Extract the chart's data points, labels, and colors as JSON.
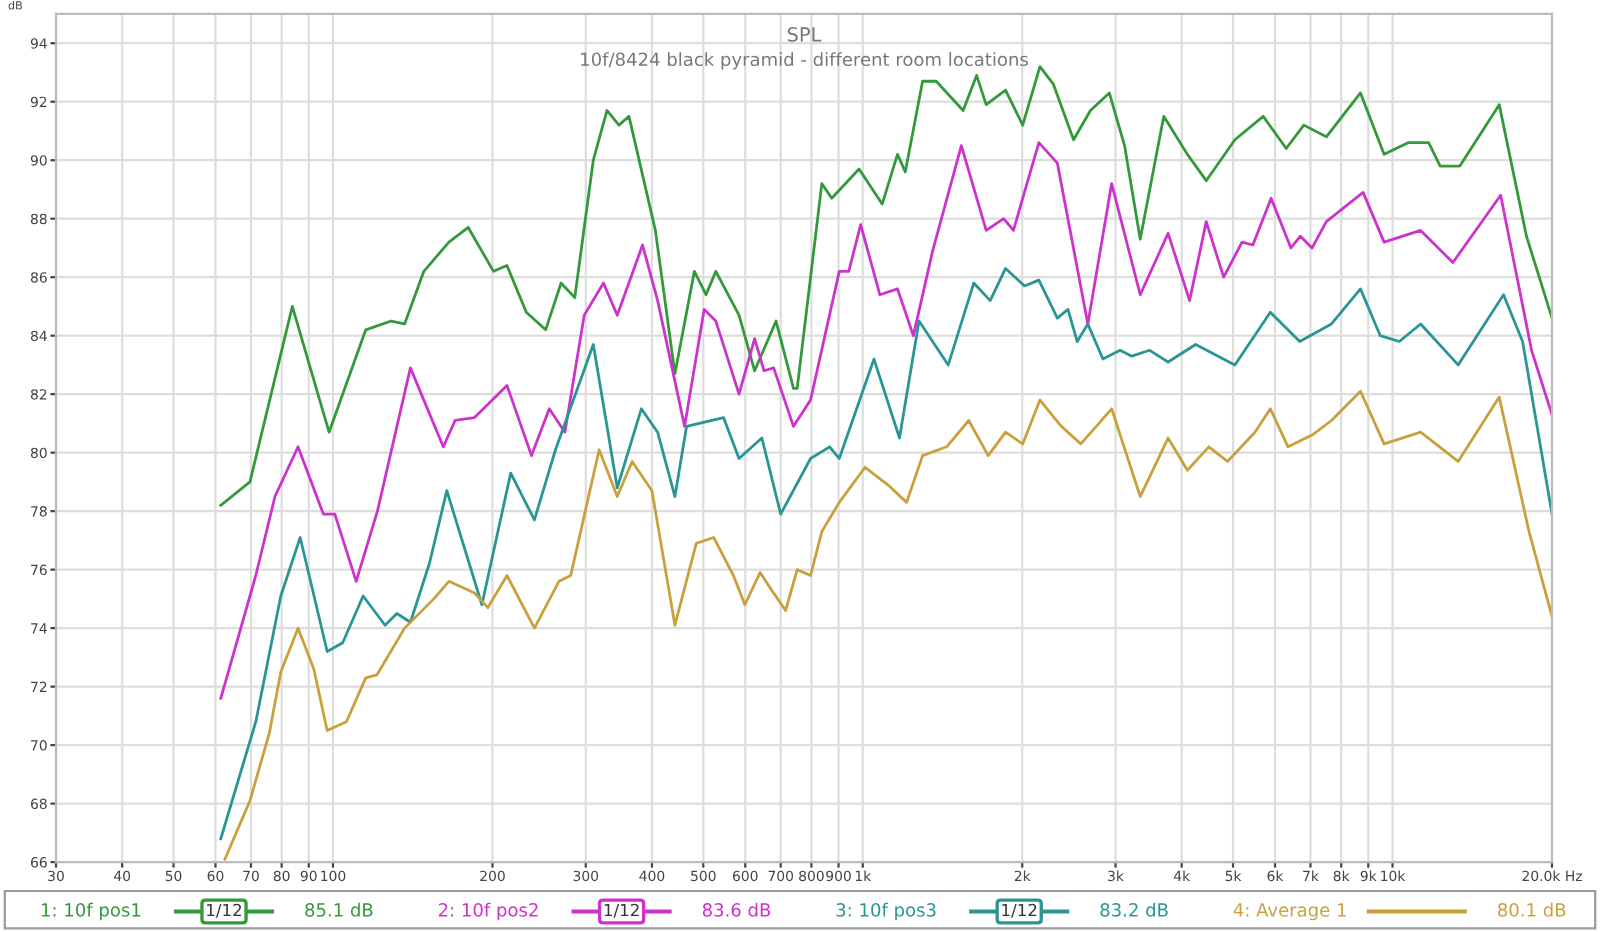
{
  "chart_data": {
    "type": "line",
    "title": "SPL",
    "subtitle": "10f/8424 black pyramid - different room locations",
    "ylabel": "dB",
    "xlim": [
      30,
      20000
    ],
    "ylim": [
      66,
      95
    ],
    "xticks": [
      30,
      40,
      50,
      60,
      70,
      80,
      90,
      100,
      200,
      300,
      400,
      500,
      600,
      700,
      800,
      900,
      {
        "value": 1000,
        "label": "1k"
      },
      {
        "value": 2000,
        "label": "2k"
      },
      {
        "value": 3000,
        "label": "3k"
      },
      {
        "value": 4000,
        "label": "4k"
      },
      {
        "value": 5000,
        "label": "5k"
      },
      {
        "value": 6000,
        "label": "6k"
      },
      {
        "value": 7000,
        "label": "7k"
      },
      {
        "value": 8000,
        "label": "8k"
      },
      {
        "value": 9000,
        "label": "9k"
      },
      {
        "value": 10000,
        "label": "10k"
      },
      {
        "value": 20000,
        "label": "20.0k Hz"
      }
    ],
    "yticks": [
      66,
      68,
      70,
      72,
      74,
      76,
      78,
      80,
      82,
      84,
      86,
      88,
      90,
      92,
      94
    ],
    "log": "x",
    "grid": true,
    "legend": "bottom",
    "marker": "none",
    "line_style": "solid",
    "annotations": [
      "1/12",
      "85.1 dB",
      "1/12",
      "83.6 dB",
      "1/12",
      "83.2 dB",
      "80.1 dB"
    ],
    "series": [
      {
        "name": "1: 10f pos1",
        "color": "#33993a",
        "x": [
          61.4,
          69.7,
          83.8,
          98.3,
          115.3,
          128.7,
          136.5,
          148.4,
          165.5,
          180,
          200.9,
          213,
          231.7,
          252,
          269.5,
          286,
          310,
          329,
          346.5,
          362,
          406,
          442,
          481,
          506,
          528,
          584,
          625,
          686,
          740,
          752,
          837,
          874,
          984,
          1088,
          1163,
          1203,
          1297,
          1376,
          1547,
          1640,
          1710,
          1860,
          2004,
          2160,
          2290,
          2500,
          2690,
          2920,
          3120,
          3340,
          3700,
          4100,
          4450,
          5040,
          5700,
          6300,
          6800,
          7500,
          8700,
          9640,
          10700,
          11700,
          12300,
          13400,
          15900,
          17900,
          20000
        ],
        "values": [
          78.2,
          79.0,
          85.0,
          80.7,
          84.2,
          84.5,
          84.4,
          86.2,
          87.2,
          87.7,
          86.2,
          86.4,
          84.8,
          84.2,
          85.8,
          85.3,
          90.0,
          91.7,
          91.2,
          91.5,
          87.6,
          82.7,
          86.2,
          85.4,
          86.2,
          84.7,
          82.8,
          84.5,
          82.2,
          82.2,
          89.2,
          88.7,
          89.7,
          88.5,
          90.2,
          89.6,
          92.7,
          92.7,
          91.7,
          92.9,
          91.9,
          92.4,
          91.2,
          93.2,
          92.6,
          90.7,
          91.7,
          92.3,
          90.5,
          87.3,
          91.5,
          90.2,
          89.3,
          90.7,
          91.5,
          90.4,
          91.2,
          90.8,
          92.3,
          90.2,
          90.6,
          90.6,
          89.8,
          89.8,
          91.9,
          87.4,
          84.6
        ]
      },
      {
        "name": "2: 10f pos2",
        "color": "#cc33cc",
        "x": [
          61.4,
          71.5,
          77.7,
          85.9,
          95.9,
          100.8,
          110.6,
          121.3,
          140,
          161.5,
          170,
          185,
          213,
          237,
          256,
          274,
          298,
          324,
          344,
          384,
          410,
          461,
          502,
          528,
          584,
          625,
          651,
          679,
          740,
          797,
          903,
          941,
          991,
          1077,
          1163,
          1246,
          1355,
          1535,
          1710,
          1845,
          1925,
          2150,
          2330,
          2660,
          2950,
          3340,
          3770,
          4140,
          4450,
          4800,
          5200,
          5450,
          5900,
          6430,
          6700,
          7050,
          7500,
          8800,
          9640,
          11300,
          13000,
          16000,
          18300,
          20000
        ],
        "values": [
          71.6,
          75.8,
          78.5,
          80.2,
          77.9,
          77.9,
          75.6,
          78.0,
          82.9,
          80.2,
          81.1,
          81.2,
          82.3,
          79.9,
          81.5,
          80.7,
          84.7,
          85.8,
          84.7,
          87.1,
          85.2,
          80.9,
          84.9,
          84.5,
          82.0,
          83.9,
          82.8,
          82.9,
          80.9,
          81.8,
          86.2,
          86.2,
          87.8,
          85.4,
          85.6,
          84.0,
          86.9,
          90.5,
          87.6,
          88.0,
          87.6,
          90.6,
          89.9,
          84.4,
          89.2,
          85.4,
          87.5,
          85.2,
          87.9,
          86.0,
          87.2,
          87.1,
          88.7,
          87.0,
          87.4,
          87.0,
          87.9,
          88.9,
          87.2,
          87.6,
          86.5,
          88.8,
          83.5,
          81.3
        ]
      },
      {
        "name": "3: 10f pos3",
        "color": "#2a9595",
        "x": [
          61.4,
          71.5,
          79.7,
          86.7,
          97.5,
          104.3,
          114,
          125.4,
          132,
          140,
          152,
          164,
          191,
          216.5,
          240,
          263,
          310,
          344,
          382,
          410,
          442,
          465,
          546,
          584,
          645,
          700,
          797,
          866,
          903,
          1050,
          1173,
          1277,
          1450,
          1620,
          1740,
          1860,
          2020,
          2150,
          2330,
          2440,
          2540,
          2660,
          2840,
          3060,
          3220,
          3480,
          3770,
          4250,
          5040,
          5880,
          6680,
          7670,
          8700,
          9480,
          10300,
          11300,
          13300,
          16200,
          17600,
          20000
        ],
        "values": [
          66.8,
          70.8,
          75.1,
          77.1,
          73.2,
          73.5,
          75.1,
          74.1,
          74.5,
          74.2,
          76.2,
          78.7,
          74.8,
          79.3,
          77.7,
          80.1,
          83.7,
          78.8,
          81.5,
          80.7,
          78.5,
          80.9,
          81.2,
          79.8,
          80.5,
          77.9,
          79.8,
          80.2,
          79.8,
          83.2,
          80.5,
          84.5,
          83.0,
          85.8,
          85.2,
          86.3,
          85.7,
          85.9,
          84.6,
          84.9,
          83.8,
          84.4,
          83.2,
          83.5,
          83.3,
          83.5,
          83.1,
          83.7,
          83.0,
          84.8,
          83.8,
          84.4,
          85.6,
          84.0,
          83.8,
          84.4,
          83.0,
          85.4,
          83.8,
          77.9
        ]
      },
      {
        "name": "4: Average 1",
        "color": "#c9a03c",
        "x": [
          62.5,
          69.7,
          75.8,
          79.7,
          85.9,
          92,
          97.5,
          106,
          115.3,
          121,
          136.5,
          155,
          165.5,
          185,
          196,
          213,
          240,
          267,
          281,
          318,
          344,
          367,
          400,
          442,
          485,
          523,
          570,
          599,
          640,
          673,
          715,
          752,
          797,
          837,
          903,
          1010,
          1115,
          1210,
          1297,
          1440,
          1585,
          1725,
          1860,
          2004,
          2160,
          2370,
          2580,
          2950,
          3340,
          3770,
          4100,
          4500,
          4880,
          5500,
          5880,
          6350,
          7050,
          7670,
          8700,
          9640,
          11300,
          13300,
          15900,
          18100,
          20000
        ],
        "values": [
          66.1,
          68.1,
          70.4,
          72.5,
          74.0,
          72.6,
          70.5,
          70.8,
          72.3,
          72.4,
          74.0,
          75.0,
          75.6,
          75.2,
          74.7,
          75.8,
          74.0,
          75.6,
          75.8,
          80.1,
          78.5,
          79.7,
          78.7,
          74.1,
          76.9,
          77.1,
          75.8,
          74.8,
          75.9,
          75.3,
          74.6,
          76.0,
          75.8,
          77.3,
          78.3,
          79.5,
          78.9,
          78.3,
          79.9,
          80.2,
          81.1,
          79.9,
          80.7,
          80.3,
          81.8,
          80.9,
          80.3,
          81.5,
          78.5,
          80.5,
          79.4,
          80.2,
          79.7,
          80.7,
          81.5,
          80.2,
          80.6,
          81.1,
          82.1,
          80.3,
          80.7,
          79.7,
          81.9,
          77.3,
          74.4
        ]
      }
    ]
  }
}
